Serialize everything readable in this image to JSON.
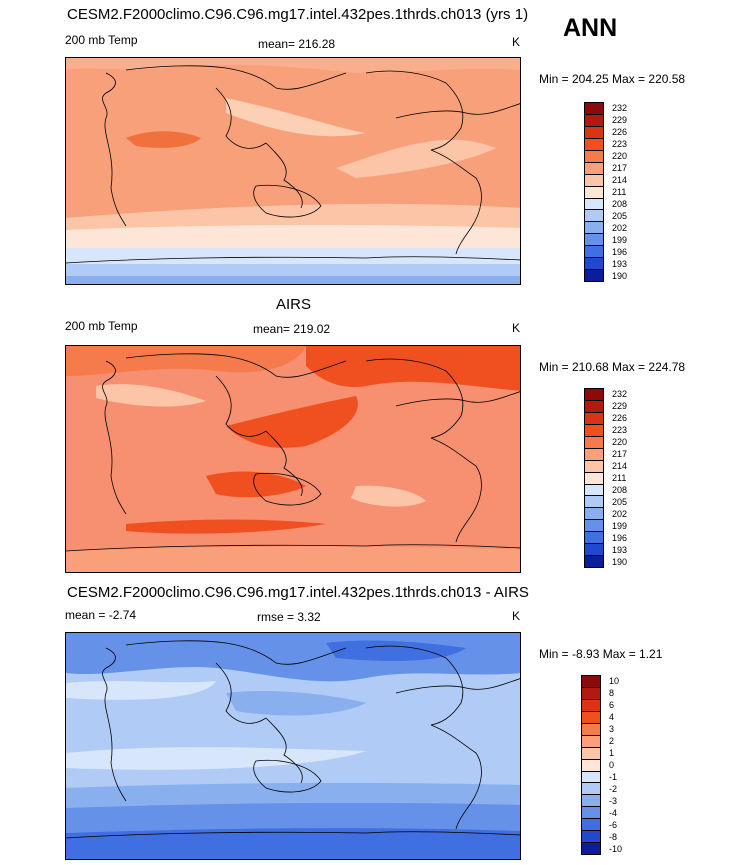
{
  "season": "ANN",
  "panels": [
    {
      "title": "CESM2.F2000climo.C96.C96.mg17.intel.432pes.1thrds.ch013 (yrs 1)",
      "left_label": "200 mb Temp",
      "center_label": "mean= 216.28",
      "units": "K",
      "minmax": "Min = 204.25 Max = 220.58"
    },
    {
      "title": "AIRS",
      "left_label": "200 mb Temp",
      "center_label": "mean= 219.02",
      "units": "K",
      "minmax": "Min = 210.68 Max = 224.78"
    },
    {
      "title": "CESM2.F2000climo.C96.C96.mg17.intel.432pes.1thrds.ch013 - AIRS",
      "left_label": "mean =  -2.74",
      "center_label": "rmse =   3.32",
      "units": "K",
      "minmax": "Min =  -8.93 Max =   1.21"
    }
  ],
  "chart_data": [
    {
      "type": "heatmap",
      "title": "CESM2.F2000climo.C96.C96.mg17.intel.432pes.1thrds.ch013 (yrs 1)",
      "variable": "200 mb Temp",
      "units": "K",
      "mean": 216.28,
      "min": 204.25,
      "max": 220.58,
      "colorbar_levels": [
        "232",
        "229",
        "226",
        "223",
        "220",
        "217",
        "214",
        "211",
        "208",
        "205",
        "202",
        "199",
        "196",
        "193",
        "190"
      ],
      "colorbar_colors": [
        "#8c0a0a",
        "#b31a0f",
        "#d93515",
        "#f0501f",
        "#f57b4d",
        "#f9a07a",
        "#fcc5a8",
        "#fde6d8",
        "#d8e6fb",
        "#b0cbf6",
        "#8aafef",
        "#6592e8",
        "#3f6fe0",
        "#2049d0",
        "#0d1c9a"
      ]
    },
    {
      "type": "heatmap",
      "title": "AIRS",
      "variable": "200 mb Temp",
      "units": "K",
      "mean": 219.02,
      "min": 210.68,
      "max": 224.78,
      "colorbar_levels": [
        "232",
        "229",
        "226",
        "223",
        "220",
        "217",
        "214",
        "211",
        "208",
        "205",
        "202",
        "199",
        "196",
        "193",
        "190"
      ],
      "colorbar_colors": [
        "#8c0a0a",
        "#b31a0f",
        "#d93515",
        "#f0501f",
        "#f57b4d",
        "#f9a07a",
        "#fcc5a8",
        "#fde6d8",
        "#d8e6fb",
        "#b0cbf6",
        "#8aafef",
        "#6592e8",
        "#3f6fe0",
        "#2049d0",
        "#0d1c9a"
      ]
    },
    {
      "type": "heatmap",
      "title": "CESM2.F2000climo.C96.C96.mg17.intel.432pes.1thrds.ch013 - AIRS",
      "units": "K",
      "mean": -2.74,
      "rmse": 3.32,
      "min": -8.93,
      "max": 1.21,
      "colorbar_levels": [
        "10",
        "8",
        "6",
        "4",
        "3",
        "2",
        "1",
        "0",
        "-1",
        "-2",
        "-3",
        "-4",
        "-6",
        "-8",
        "-10"
      ],
      "colorbar_colors": [
        "#8c0a0a",
        "#b31a0f",
        "#d93515",
        "#f0501f",
        "#f57b4d",
        "#f9a07a",
        "#fcc5a8",
        "#fde6d8",
        "#d8e6fb",
        "#b0cbf6",
        "#8aafef",
        "#6592e8",
        "#3f6fe0",
        "#2049d0",
        "#0d1c9a"
      ]
    }
  ]
}
